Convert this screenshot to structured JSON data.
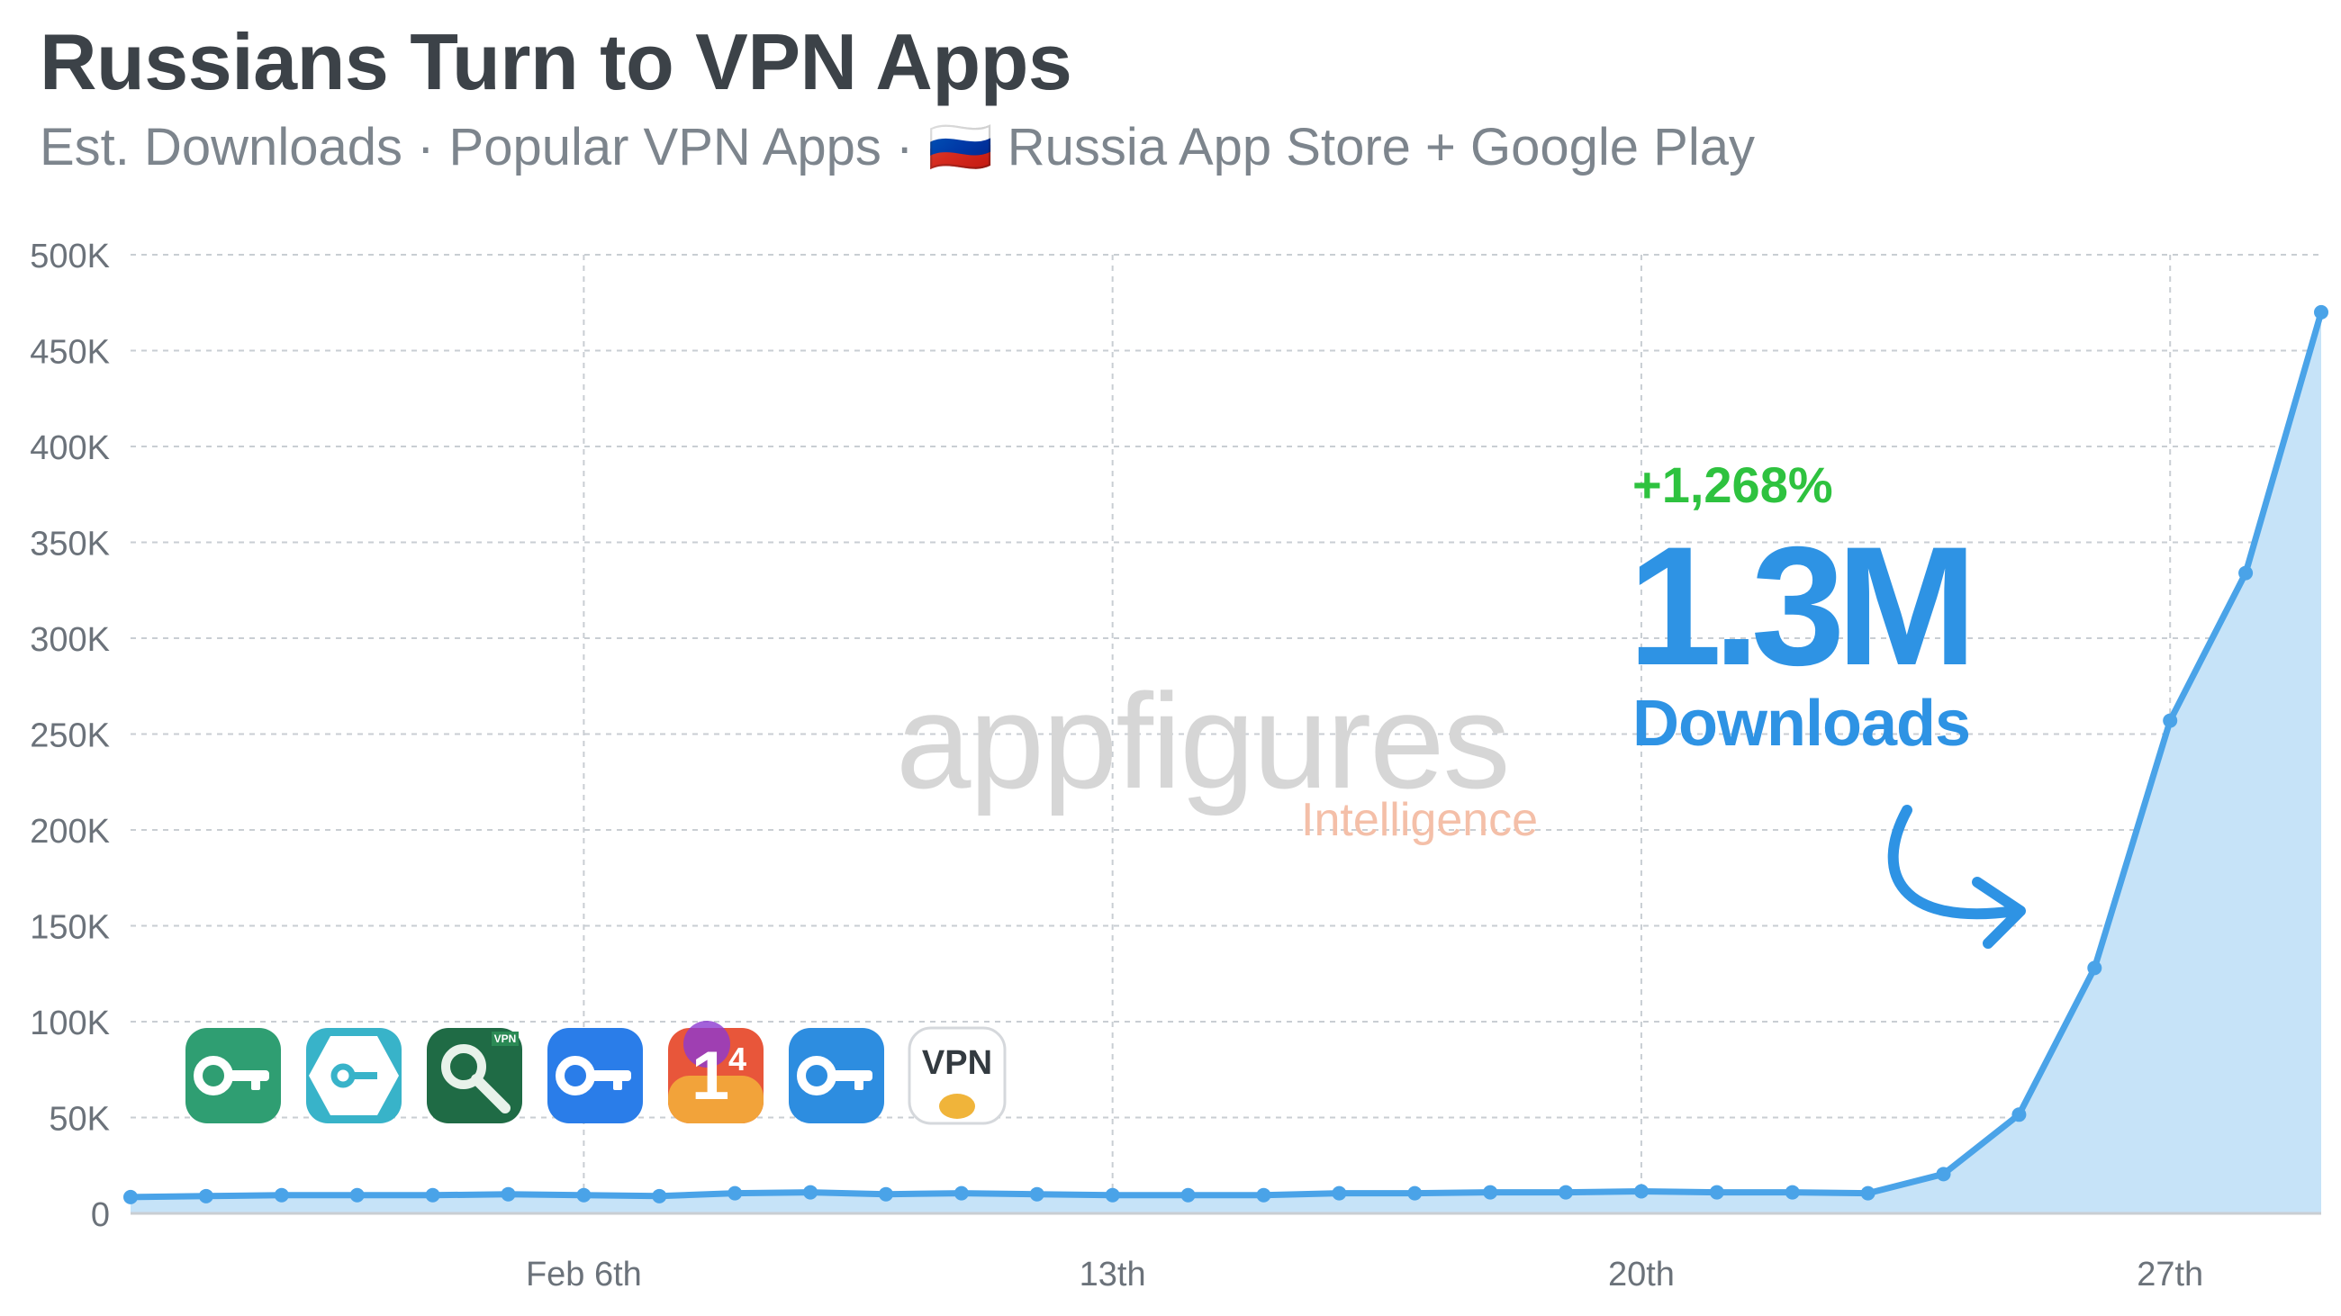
{
  "header": {
    "title": "Russians Turn to VPN Apps",
    "subtitle": "Est. Downloads · Popular VPN Apps · 🇷🇺 Russia App Store + Google Play"
  },
  "watermark": {
    "brand": "appfigures",
    "sub": "Intelligence"
  },
  "annotation": {
    "growth": "+1,268%",
    "total": "1.3M",
    "total_label": "Downloads",
    "color_growth": "#2ec23f",
    "color_total": "#2e93e4"
  },
  "apps": [
    {
      "name": "green-key-vpn",
      "color": "#2f9e72",
      "glyph": "key"
    },
    {
      "name": "teal-hexagon-key-vpn",
      "color": "#38b3c9",
      "glyph": "hex-key"
    },
    {
      "name": "dark-green-key-vpn",
      "color": "#1f6b45",
      "glyph": "vpn-key",
      "badge": "VPN"
    },
    {
      "name": "blue-key-vpn",
      "color": "#2a7de9",
      "glyph": "key"
    },
    {
      "name": "1-1-1-1-warp",
      "color": "#e8563a",
      "glyph": "1-4",
      "label": "1",
      "sup": "4"
    },
    {
      "name": "blue-bar-key-vpn",
      "color": "#2d8de0",
      "glyph": "key"
    },
    {
      "name": "vpn-hamster",
      "color": "#ffffff",
      "glyph": "vpn-text",
      "label": "VPN"
    }
  ],
  "chart_data": {
    "type": "area",
    "color": "#4aa3e8",
    "fill": "#c6e3f8",
    "ylim": [
      0,
      500000
    ],
    "yticks": [
      {
        "value": 0,
        "label": "0"
      },
      {
        "value": 50000,
        "label": "50K"
      },
      {
        "value": 100000,
        "label": "100K"
      },
      {
        "value": 150000,
        "label": "150K"
      },
      {
        "value": 200000,
        "label": "200K"
      },
      {
        "value": 250000,
        "label": "250K"
      },
      {
        "value": 300000,
        "label": "300K"
      },
      {
        "value": 350000,
        "label": "350K"
      },
      {
        "value": 400000,
        "label": "400K"
      },
      {
        "value": 450000,
        "label": "450K"
      },
      {
        "value": 500000,
        "label": "500K"
      }
    ],
    "xticks": [
      {
        "x": 6,
        "label": "Feb 6th"
      },
      {
        "x": 13,
        "label": "13th"
      },
      {
        "x": 20,
        "label": "20th"
      },
      {
        "x": 27,
        "label": "27th"
      }
    ],
    "xlim": [
      0,
      29
    ],
    "grid": true,
    "x": [
      0,
      1,
      2,
      3,
      4,
      5,
      6,
      7,
      8,
      9,
      10,
      11,
      12,
      13,
      14,
      15,
      16,
      17,
      18,
      19,
      20,
      21,
      22,
      23,
      24,
      25,
      26,
      27,
      28,
      29
    ],
    "values": [
      8500,
      9000,
      9500,
      9500,
      9500,
      10000,
      9500,
      9000,
      10500,
      11000,
      10000,
      10500,
      10000,
      9500,
      9500,
      9500,
      10500,
      10500,
      11000,
      11000,
      11500,
      11000,
      11000,
      10500,
      20500,
      51500,
      128000,
      257000,
      334000,
      470000
    ]
  }
}
